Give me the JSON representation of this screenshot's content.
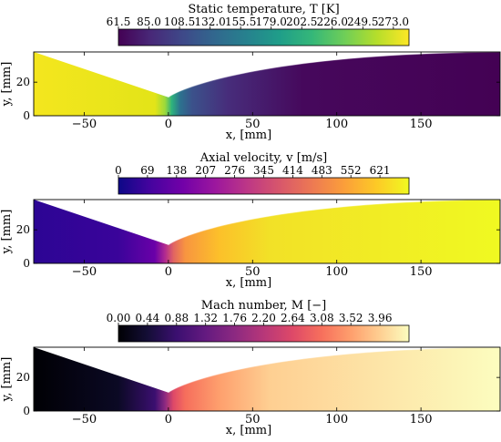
{
  "chart_data": [
    {
      "type": "heatmap",
      "colorbar": {
        "title": "Static temperature, T [K]",
        "ticks": [
          "61.5",
          "85.0",
          "108.5",
          "132.0",
          "155.5",
          "179.0",
          "202.5",
          "226.0",
          "249.5",
          "273.0"
        ],
        "tick_values": [
          61.5,
          85.0,
          108.5,
          132.0,
          155.5,
          179.0,
          202.5,
          226.0,
          249.5,
          273.0
        ],
        "range": [
          61.5,
          285
        ],
        "colormap": "viridis"
      },
      "xlabel": "x, [mm]",
      "ylabel": "y, [mm]",
      "xticks": [
        "−50",
        "0",
        "50",
        "100",
        "150"
      ],
      "xtick_values": [
        -50,
        0,
        50,
        100,
        150
      ],
      "yticks": [
        "0",
        "20"
      ],
      "ytick_values": [
        0,
        20
      ],
      "xlim": [
        -80,
        197
      ],
      "ylim": [
        0,
        38
      ],
      "field_stops": [
        {
          "x": -80,
          "color": "#f4e61e"
        },
        {
          "x": -8,
          "color": "#e3e418"
        },
        {
          "x": -2,
          "color": "#9bd93c"
        },
        {
          "x": 2,
          "color": "#2db27d"
        },
        {
          "x": 7,
          "color": "#2c728e"
        },
        {
          "x": 14,
          "color": "#3b528b"
        },
        {
          "x": 35,
          "color": "#472d7b"
        },
        {
          "x": 80,
          "color": "#46085c"
        },
        {
          "x": 197,
          "color": "#440154"
        }
      ]
    },
    {
      "type": "heatmap",
      "colorbar": {
        "title": "Axial velocity, v [m/s]",
        "ticks": [
          "0",
          "69",
          "138",
          "207",
          "276",
          "345",
          "414",
          "483",
          "552",
          "621"
        ],
        "tick_values": [
          0,
          69,
          138,
          207,
          276,
          345,
          414,
          483,
          552,
          621
        ],
        "range": [
          0,
          690
        ],
        "colormap": "plasma"
      },
      "xlabel": "x, [mm]",
      "ylabel": "y, [mm]",
      "xticks": [
        "−50",
        "0",
        "50",
        "100",
        "150"
      ],
      "xtick_values": [
        -50,
        0,
        50,
        100,
        150
      ],
      "yticks": [
        "0",
        "20"
      ],
      "ytick_values": [
        0,
        20
      ],
      "xlim": [
        -80,
        197
      ],
      "ylim": [
        0,
        38
      ],
      "field_stops": [
        {
          "x": -80,
          "color": "#2c0594"
        },
        {
          "x": -30,
          "color": "#3a049a"
        },
        {
          "x": -8,
          "color": "#6a00a8"
        },
        {
          "x": -2,
          "color": "#b12a90"
        },
        {
          "x": 3,
          "color": "#e16462"
        },
        {
          "x": 10,
          "color": "#f89540"
        },
        {
          "x": 30,
          "color": "#fcc02a"
        },
        {
          "x": 60,
          "color": "#f2e127"
        },
        {
          "x": 197,
          "color": "#f0f921"
        }
      ]
    },
    {
      "type": "heatmap",
      "colorbar": {
        "title": "Mach number, M [−]",
        "ticks": [
          "0.00",
          "0.44",
          "0.88",
          "1.32",
          "1.76",
          "2.20",
          "2.64",
          "3.08",
          "3.52",
          "3.96"
        ],
        "tick_values": [
          0,
          0.44,
          0.88,
          1.32,
          1.76,
          2.2,
          2.64,
          3.08,
          3.52,
          3.96
        ],
        "range": [
          0,
          4.4
        ],
        "colormap": "magma"
      },
      "xlabel": "x, [mm]",
      "ylabel": "y, [mm]",
      "xticks": [
        "−50",
        "0",
        "50",
        "100",
        "150"
      ],
      "xtick_values": [
        -50,
        0,
        50,
        100,
        150
      ],
      "yticks": [
        "0",
        "20"
      ],
      "ytick_values": [
        0,
        20
      ],
      "xlim": [
        -80,
        197
      ],
      "ylim": [
        0,
        38
      ],
      "field_stops": [
        {
          "x": -80,
          "color": "#000004"
        },
        {
          "x": -30,
          "color": "#0b0924"
        },
        {
          "x": -8,
          "color": "#3b0f70"
        },
        {
          "x": -2,
          "color": "#8c2981"
        },
        {
          "x": 3,
          "color": "#de4968"
        },
        {
          "x": 10,
          "color": "#f66e5c"
        },
        {
          "x": 30,
          "color": "#fe9f6d"
        },
        {
          "x": 60,
          "color": "#fecf92"
        },
        {
          "x": 197,
          "color": "#fcfdbf"
        }
      ]
    }
  ],
  "geometry": {
    "throat": {
      "x": 0,
      "y": 11
    },
    "inlet": {
      "x": -80,
      "y": 38
    },
    "outlet": {
      "x": 197,
      "y": 38
    }
  }
}
